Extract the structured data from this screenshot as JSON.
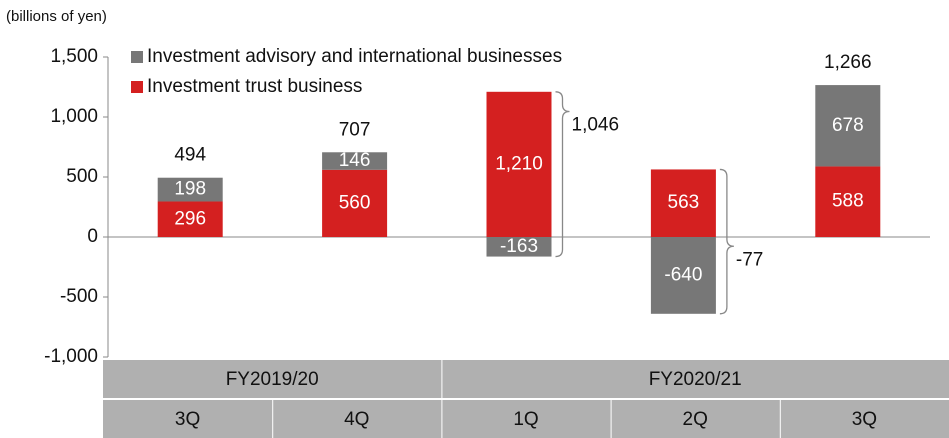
{
  "chart_data": {
    "type": "stacked_bar",
    "y_axis_label": "(billions of yen)",
    "categories": [
      "3Q",
      "4Q",
      "1Q",
      "2Q",
      "3Q"
    ],
    "groups": [
      {
        "label": "FY2019/20",
        "count": 2
      },
      {
        "label": "FY2020/21",
        "count": 3
      }
    ],
    "series": [
      {
        "name": "Investment trust business",
        "color": "#d42020",
        "values": [
          296,
          560,
          1210,
          563,
          588
        ],
        "value_labels": [
          "296",
          "560",
          "1,210",
          "563",
          "588"
        ]
      },
      {
        "name": "Investment advisory and international businesses",
        "color": "#777777",
        "values": [
          198,
          146,
          -163,
          -640,
          678
        ],
        "value_labels": [
          "198",
          "146",
          "-163",
          "-640",
          "678"
        ]
      }
    ],
    "totals": [
      494,
      707,
      1046,
      -77,
      1266
    ],
    "totals_labels": [
      "494",
      "707",
      "1,046",
      "-77",
      "1,266"
    ],
    "ylim": [
      -1000,
      1500
    ],
    "yticks": [
      {
        "value": -1000,
        "label": "-1,000"
      },
      -500,
      0,
      500,
      {
        "value": 1000,
        "label": "1,000"
      },
      {
        "value": 1500,
        "label": "1,500"
      }
    ]
  }
}
